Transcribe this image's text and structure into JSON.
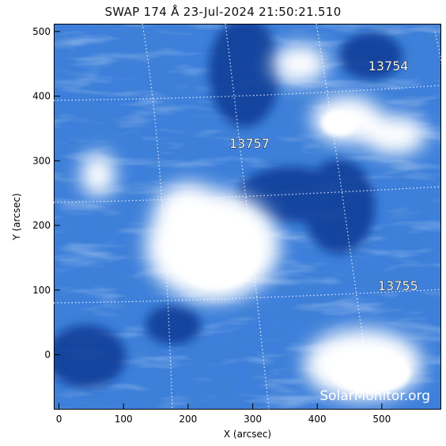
{
  "title": "SWAP 174 Å 23-Jul-2024 21:50:21.510",
  "x_axis": {
    "label": "X (arcsec)",
    "ticks": [
      "0",
      "100",
      "200",
      "300",
      "400",
      "500"
    ],
    "tick_values": [
      0,
      100,
      200,
      300,
      400,
      500
    ],
    "range": [
      -8,
      592
    ]
  },
  "y_axis": {
    "label": "Y (arcsec)",
    "ticks": [
      "0",
      "100",
      "200",
      "300",
      "400",
      "500"
    ],
    "tick_values": [
      0,
      100,
      200,
      300,
      400,
      500
    ],
    "range": [
      -85,
      512
    ]
  },
  "active_regions": [
    {
      "label": "13754",
      "x": 510,
      "y": 440
    },
    {
      "label": "13757",
      "x": 295,
      "y": 320
    },
    {
      "label": "13755",
      "x": 525,
      "y": 100
    }
  ],
  "watermark": "SolarMonitor.org",
  "colors": {
    "dark": "#0b3f9e",
    "mid": "#2e74d6",
    "light": "#8fb8ee",
    "bright": "#ffffff"
  }
}
